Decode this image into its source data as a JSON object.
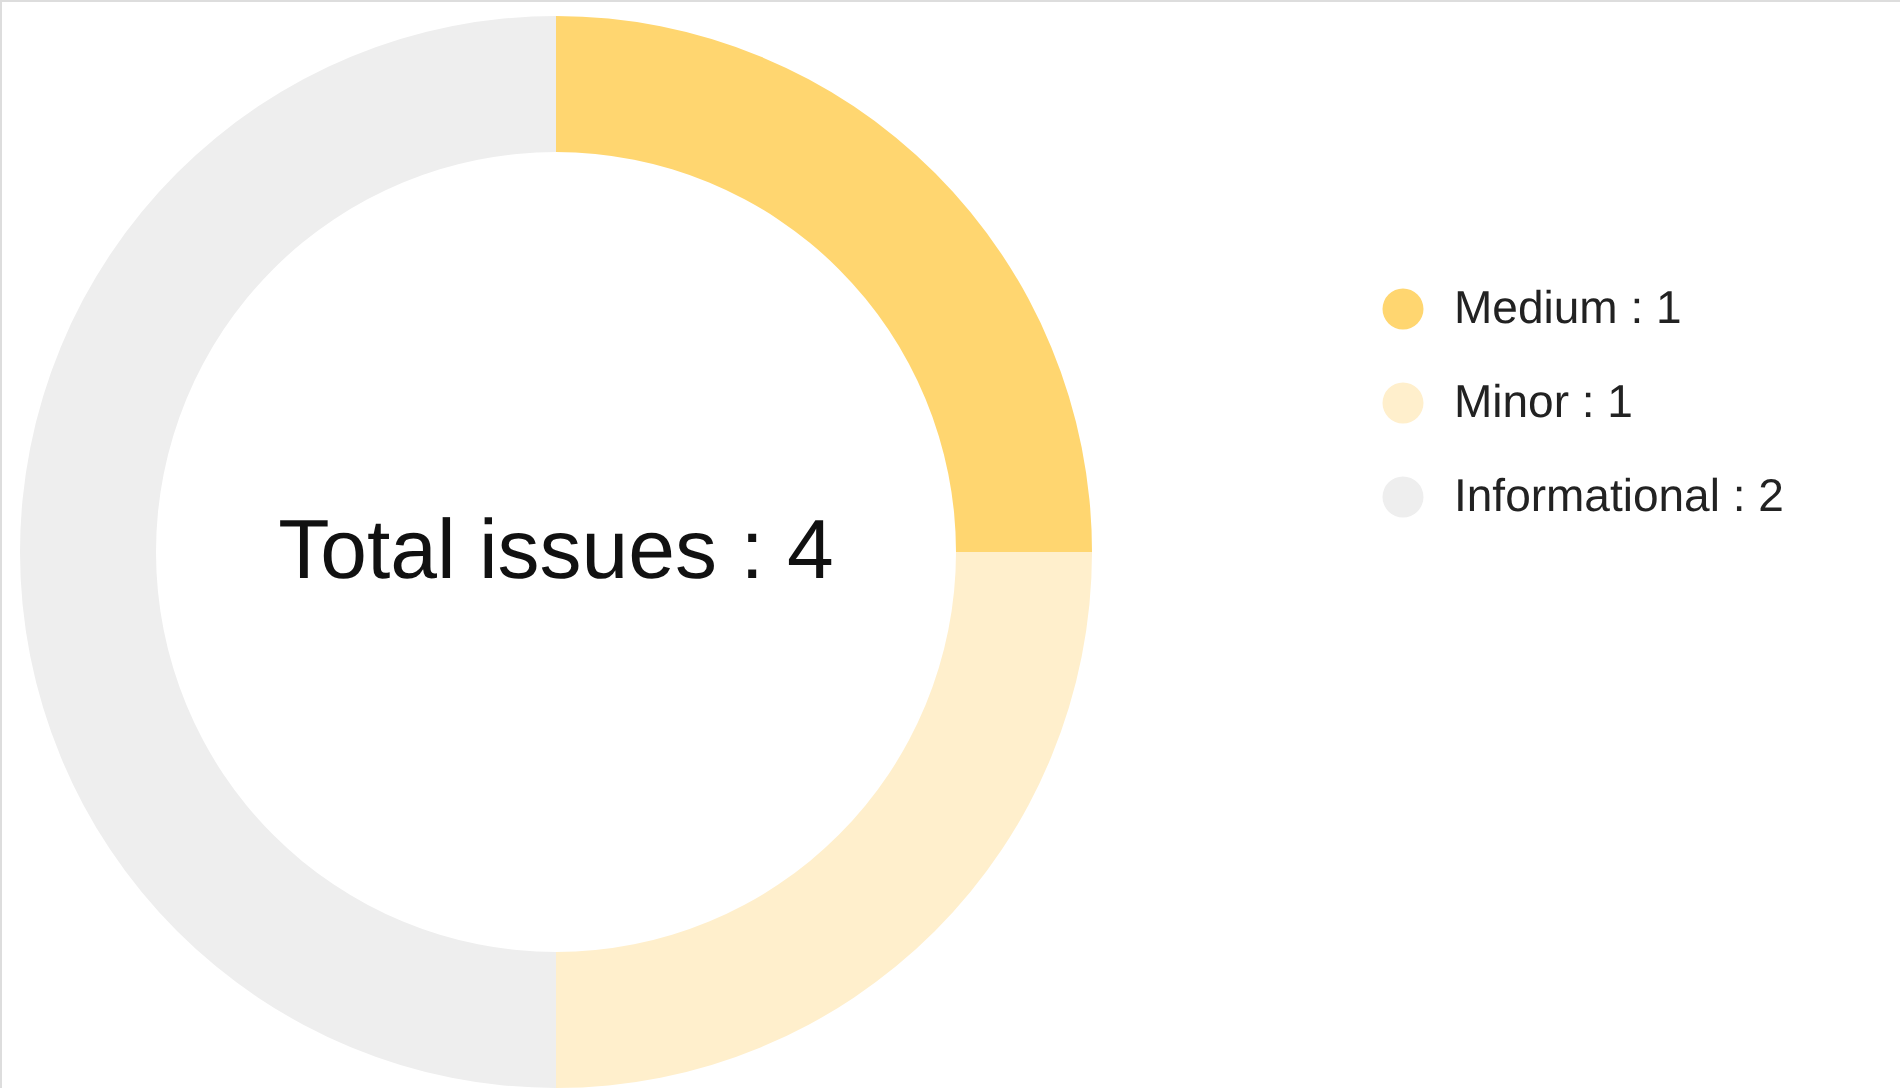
{
  "chart_data": {
    "type": "donut",
    "categories": [
      "Medium : 1",
      "Minor : 1",
      "Informational : 2"
    ],
    "values": [
      1,
      1,
      2
    ],
    "colors": [
      "#ffd670",
      "#ffefcc",
      "#eeeeee"
    ],
    "annotations": [
      "Total issues : 4"
    ],
    "legend": "right"
  }
}
